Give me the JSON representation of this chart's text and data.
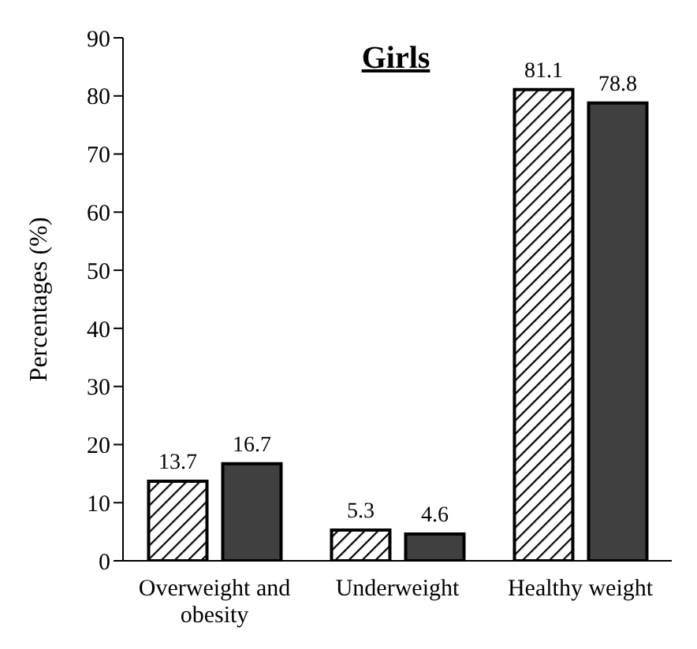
{
  "chart_data": {
    "type": "bar",
    "title": "Girls",
    "ylabel": "Percentages (%)",
    "categories": [
      "Overweight and obesity",
      "Underweight",
      "Healthy weight"
    ],
    "series": [
      {
        "color": "#000000",
        "values": [
          13.7,
          5.3,
          81.1
        ]
      },
      {
        "color": "#404040",
        "values": [
          16.7,
          4.6,
          78.8
        ]
      }
    ],
    "ylim": [
      0,
      90
    ],
    "yticks": [
      0,
      10,
      20,
      30,
      40,
      50,
      60,
      70,
      80,
      90
    ],
    "grid": false,
    "legend": false,
    "data_labels": true
  }
}
